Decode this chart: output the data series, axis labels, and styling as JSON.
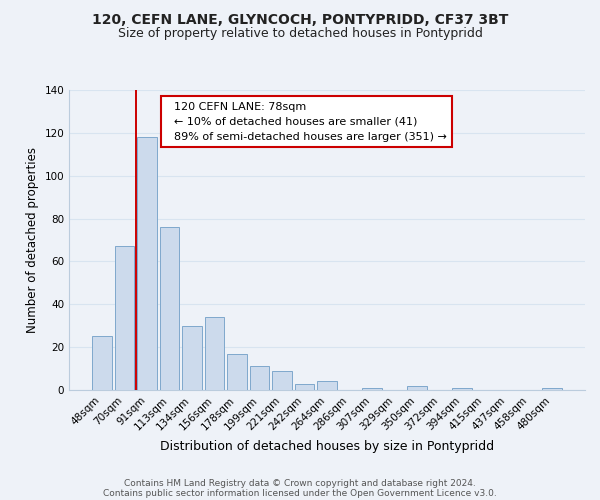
{
  "title": "120, CEFN LANE, GLYNCOCH, PONTYPRIDD, CF37 3BT",
  "subtitle": "Size of property relative to detached houses in Pontypridd",
  "xlabel": "Distribution of detached houses by size in Pontypridd",
  "ylabel": "Number of detached properties",
  "bar_labels": [
    "48sqm",
    "70sqm",
    "91sqm",
    "113sqm",
    "134sqm",
    "156sqm",
    "178sqm",
    "199sqm",
    "221sqm",
    "242sqm",
    "264sqm",
    "286sqm",
    "307sqm",
    "329sqm",
    "350sqm",
    "372sqm",
    "394sqm",
    "415sqm",
    "437sqm",
    "458sqm",
    "480sqm"
  ],
  "bar_values": [
    25,
    67,
    118,
    76,
    30,
    34,
    17,
    11,
    9,
    3,
    4,
    0,
    1,
    0,
    2,
    0,
    1,
    0,
    0,
    0,
    1
  ],
  "bar_color": "#ccdaec",
  "bar_edge_color": "#7fa8cc",
  "vline_color": "#cc0000",
  "vline_x_idx": 1.5,
  "ylim": [
    0,
    140
  ],
  "yticks": [
    0,
    20,
    40,
    60,
    80,
    100,
    120,
    140
  ],
  "annotation_title": "120 CEFN LANE: 78sqm",
  "annotation_line1": "← 10% of detached houses are smaller (41)",
  "annotation_line2": "89% of semi-detached houses are larger (351) →",
  "annotation_box_facecolor": "#ffffff",
  "annotation_box_edgecolor": "#cc0000",
  "footnote1": "Contains HM Land Registry data © Crown copyright and database right 2024.",
  "footnote2": "Contains public sector information licensed under the Open Government Licence v3.0.",
  "grid_color": "#d8e4f0",
  "background_color": "#eef2f8",
  "title_fontsize": 10,
  "subtitle_fontsize": 9,
  "ylabel_fontsize": 8.5,
  "xlabel_fontsize": 9,
  "tick_fontsize": 7.5,
  "footnote_fontsize": 6.5
}
